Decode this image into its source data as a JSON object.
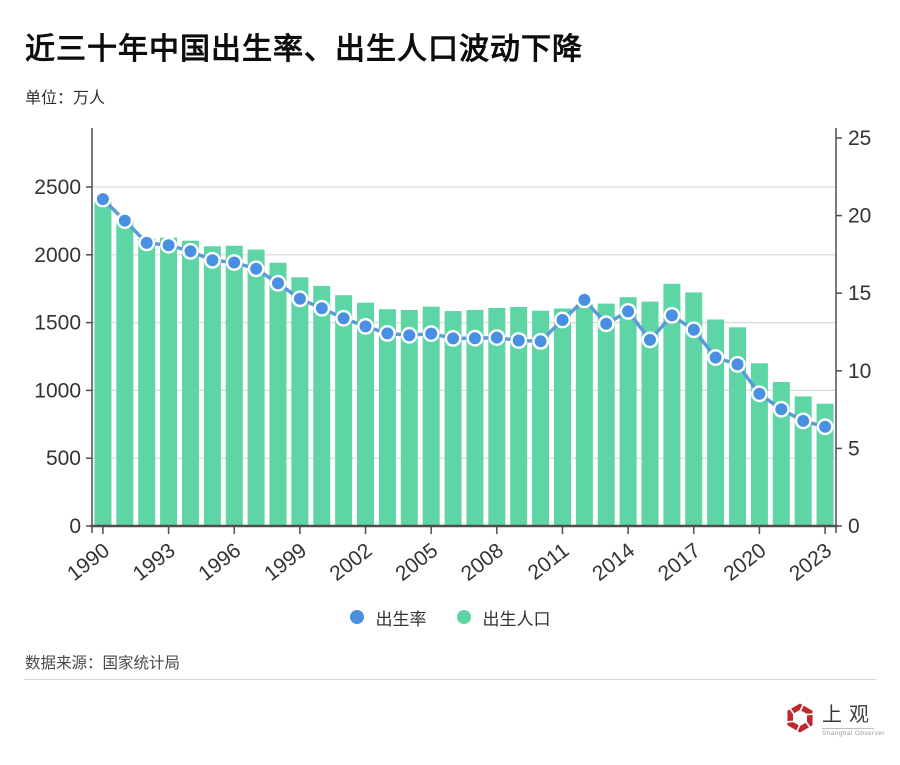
{
  "header": {
    "title": "近三十年中国出生率、出生人口波动下降",
    "unit_label": "单位：万人"
  },
  "chart_data": {
    "type": "combo",
    "categories": [
      "1990",
      "1991",
      "1992",
      "1993",
      "1994",
      "1995",
      "1996",
      "1997",
      "1998",
      "1999",
      "2000",
      "2001",
      "2002",
      "2003",
      "2004",
      "2005",
      "2006",
      "2007",
      "2008",
      "2009",
      "2010",
      "2011",
      "2012",
      "2013",
      "2014",
      "2015",
      "2016",
      "2017",
      "2018",
      "2019",
      "2020",
      "2021",
      "2022",
      "2023"
    ],
    "x_tick_labels": [
      "1990",
      "1993",
      "1996",
      "1999",
      "2002",
      "2005",
      "2008",
      "2011",
      "2014",
      "2017",
      "2020",
      "2023"
    ],
    "series": [
      {
        "name": "出生率",
        "type": "line",
        "axis": "right",
        "color": "#5b9bd8",
        "point_color": "#4a90e2",
        "values": [
          21.06,
          19.68,
          18.24,
          18.09,
          17.7,
          17.12,
          16.98,
          16.57,
          15.64,
          14.64,
          14.03,
          13.38,
          12.86,
          12.41,
          12.29,
          12.4,
          12.09,
          12.1,
          12.14,
          11.95,
          11.9,
          13.27,
          14.57,
          13.03,
          13.83,
          11.99,
          13.57,
          12.64,
          10.86,
          10.41,
          8.52,
          7.52,
          6.77,
          6.39
        ]
      },
      {
        "name": "出生人口",
        "type": "bar",
        "axis": "left",
        "color": "#5ed5a4",
        "values": [
          2391,
          2258,
          2119,
          2126,
          2104,
          2063,
          2067,
          2038,
          1942,
          1834,
          1771,
          1702,
          1647,
          1599,
          1593,
          1617,
          1585,
          1594,
          1608,
          1615,
          1588,
          1604,
          1635,
          1640,
          1687,
          1655,
          1786,
          1723,
          1523,
          1465,
          1200,
          1062,
          956,
          902
        ]
      }
    ],
    "left_axis": {
      "min": 0,
      "max": 2500,
      "ticks": [
        0,
        500,
        1000,
        1500,
        2000,
        2500
      ]
    },
    "right_axis": {
      "min": 0,
      "max": 25,
      "ticks": [
        0,
        5,
        10,
        15,
        20,
        25
      ]
    },
    "grid": "horizontal",
    "legend_position": "bottom",
    "colors": {
      "grid": "#d9d9d9",
      "axis": "#4d4d4d",
      "label": "#333333"
    }
  },
  "legend": {
    "items": [
      {
        "label": "出生率",
        "color": "#4a90e2"
      },
      {
        "label": "出生人口",
        "color": "#5ed5a4"
      }
    ]
  },
  "footer": {
    "source": "数据来源：国家统计局"
  },
  "logo": {
    "name": "上观",
    "subtitle": "Shanghai Observer",
    "color": "#c1272d"
  }
}
